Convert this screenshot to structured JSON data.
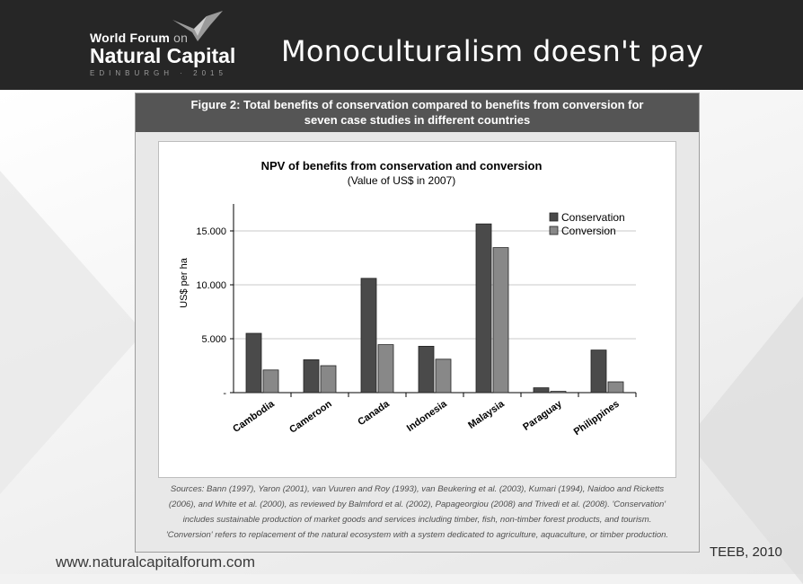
{
  "header": {
    "logo_line1": "World Forum",
    "logo_on": "on",
    "logo_line2": "Natural Capital",
    "logo_line3": "EDINBURGH · 2015",
    "title": "Monoculturalism doesn't pay"
  },
  "figure": {
    "header_line1": "Figure 2: Total benefits of conservation compared to benefits from conversion for",
    "header_line2": "seven case studies in different countries",
    "sources": [
      "Sources: Bann (1997), Yaron (2001), van Vuuren and Roy (1993), van Beukering et al. (2003), Kumari (1994), Naidoo and Ricketts",
      "(2006), and White et al. (2000), as reviewed by Balmford et al. (2002), Papageorgiou (2008) and Trivedi et al. (2008). 'Conservation'",
      "includes sustainable production of market goods and services including timber, fish, non-timber forest products, and tourism.",
      "'Conversion' refers to replacement of the natural ecosystem with a system dedicated to agriculture, aquaculture, or timber production."
    ]
  },
  "footer": {
    "citation": "TEEB, 2010",
    "website": "www.naturalcapitalforum.com"
  },
  "colors": {
    "conservation": "#4a4a4a",
    "conversion": "#888888",
    "header_bg": "#262626",
    "figure_header_bg": "#555555"
  },
  "chart_data": {
    "type": "bar",
    "title": "NPV of benefits from conservation and conversion",
    "subtitle": "(Value of US$ in 2007)",
    "xlabel": "",
    "ylabel": "US$ per ha",
    "categories": [
      "Cambodia",
      "Cameroon",
      "Canada",
      "Indonesia",
      "Malaysia",
      "Paraguay",
      "Philippines"
    ],
    "series": [
      {
        "name": "Conservation",
        "values": [
          5500,
          3050,
          10600,
          4300,
          15650,
          450,
          3950
        ]
      },
      {
        "name": "Conversion",
        "values": [
          2100,
          2500,
          4450,
          3100,
          13450,
          120,
          1000
        ]
      }
    ],
    "ylim": [
      0,
      17000
    ],
    "yticks": [
      0,
      5000,
      10000,
      15000
    ],
    "ytick_labels": [
      "-",
      "5.000",
      "10.000",
      "15.000"
    ],
    "grid": true,
    "legend_position": "top-right"
  }
}
